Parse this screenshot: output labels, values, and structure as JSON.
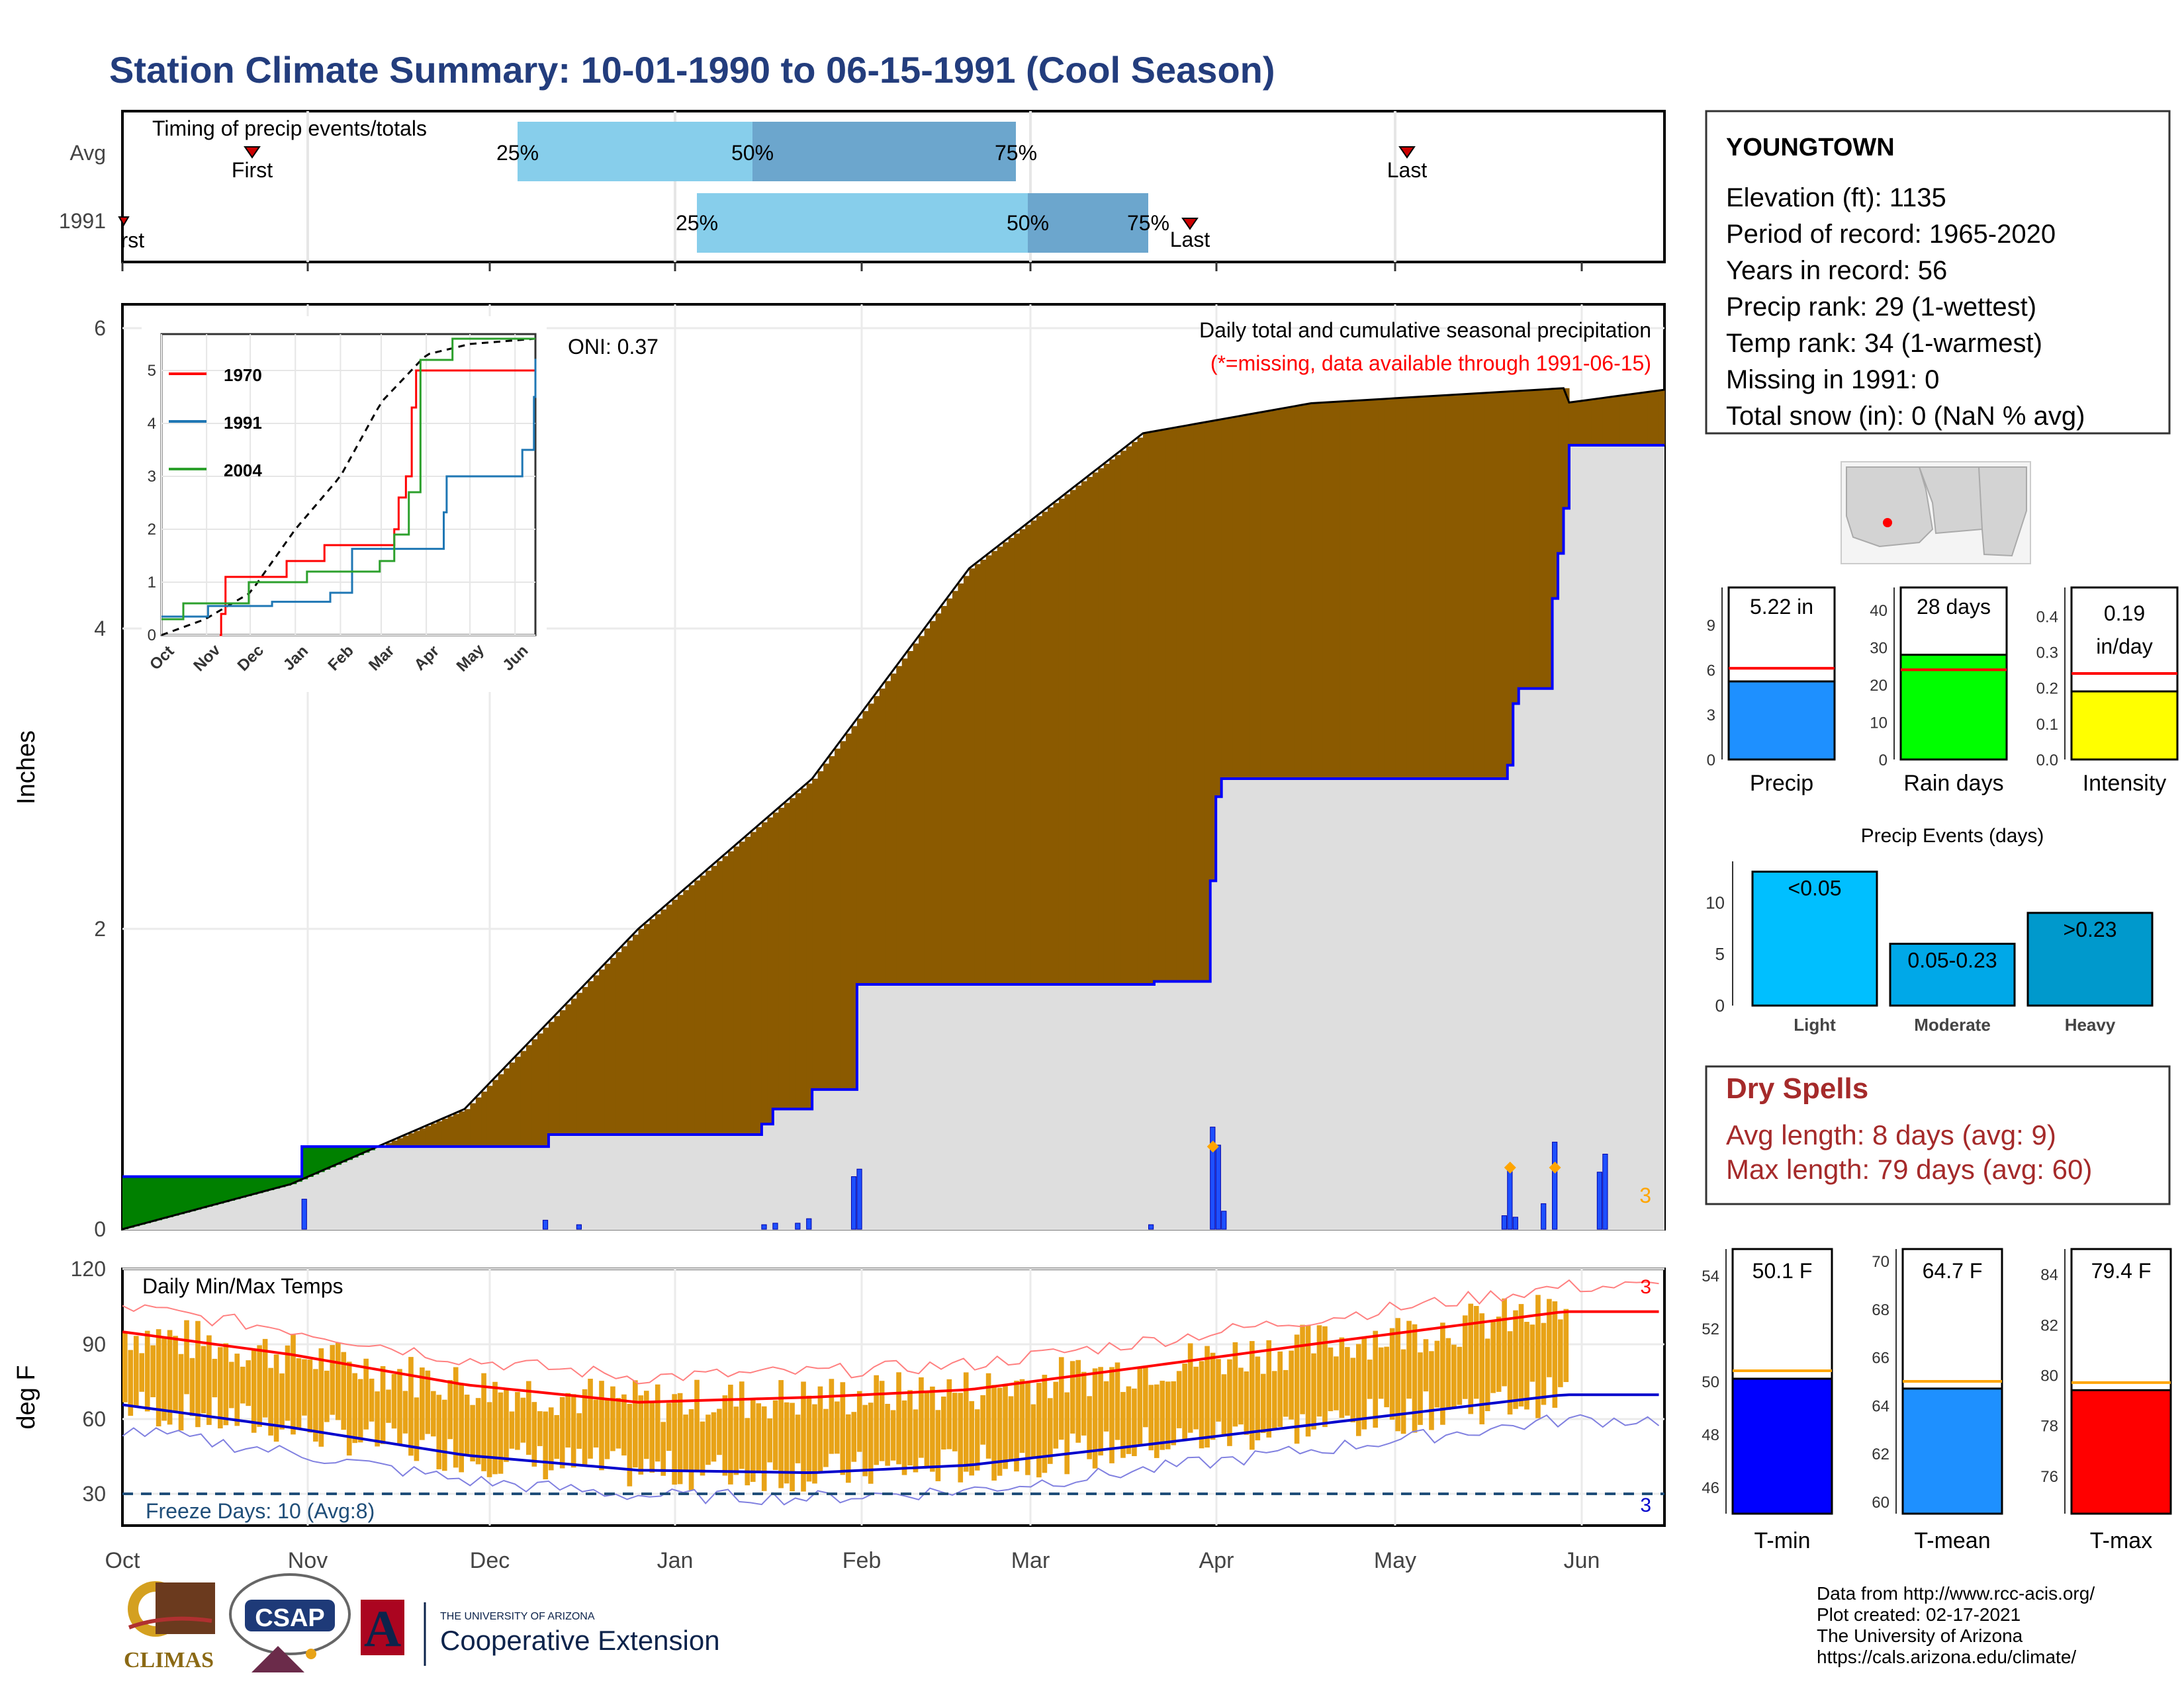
{
  "title": "Station Climate Summary: 10-01-1990 to 06-15-1991 (Cool Season)",
  "station": {
    "name": "YOUNGTOWN",
    "lines": [
      "Elevation (ft): 1135",
      "Period of record: 1965-2020",
      "Years in record: 56",
      "Precip rank: 29 (1-wettest)",
      "Temp rank: 34 (1-warmest)",
      "Missing in 1991: 0",
      "Total snow (in): 0 (NaN % avg)"
    ]
  },
  "timing": {
    "title": "Timing of precip events/totals",
    "rows": [
      "Avg",
      "1991"
    ],
    "avg": {
      "first": "First",
      "last": "Last",
      "p25": "25%",
      "p50": "50%",
      "p75": "75%"
    },
    "y1991": {
      "first": "First",
      "last": "Last",
      "p25": "25%",
      "p50": "50%",
      "p75": "75%"
    }
  },
  "precip_panel": {
    "ylabel": "Inches",
    "yticks": [
      "0",
      "2",
      "4",
      "6"
    ],
    "oni": "ONI: 0.37",
    "heading": "Daily total and cumulative seasonal precipitation",
    "missing_note": "(*=missing, data available through 1991-06-15)",
    "corner_count": "3"
  },
  "inset": {
    "legend": [
      "1970",
      "1991",
      "2004"
    ],
    "yticks": [
      "0",
      "1",
      "2",
      "3",
      "4",
      "5"
    ],
    "xticks": [
      "Oct",
      "Nov",
      "Dec",
      "Jan",
      "Feb",
      "Mar",
      "Apr",
      "May",
      "Jun"
    ]
  },
  "temp_panel": {
    "ylabel": "deg F",
    "title": "Daily Min/Max Temps",
    "freeze": "Freeze Days: 10 (Avg:8)",
    "yticks": [
      "30",
      "60",
      "90",
      "120"
    ],
    "xticks": [
      "Oct",
      "Nov",
      "Dec",
      "Jan",
      "Feb",
      "Mar",
      "Apr",
      "May",
      "Jun"
    ],
    "count_max": "3",
    "count_min": "3"
  },
  "mini_bars": [
    {
      "label": "Precip",
      "value_text": "5.22 in",
      "yticks": [
        "0",
        "3",
        "6",
        "9"
      ]
    },
    {
      "label": "Rain days",
      "value_text": "28 days",
      "yticks": [
        "0",
        "10",
        "20",
        "30",
        "40"
      ]
    },
    {
      "label": "Intensity",
      "value_text": "0.19 in/day",
      "value_line1": "0.19",
      "value_line2": "in/day",
      "yticks": [
        "0.0",
        "0.1",
        "0.2",
        "0.3",
        "0.4"
      ]
    }
  ],
  "events": {
    "title": "Precip Events (days)",
    "yticks": [
      "0",
      "5",
      "10"
    ],
    "bars": [
      {
        "category": "Light",
        "label": "<0.05"
      },
      {
        "category": "Moderate",
        "label": "0.05-0.23"
      },
      {
        "category": "Heavy",
        "label": ">0.23"
      }
    ]
  },
  "dry_spells": {
    "title": "Dry Spells",
    "avg": "Avg length: 8 days (avg: 9)",
    "max": "Max length: 79 days (avg: 60)"
  },
  "temp_bars": [
    {
      "label": "T-min",
      "value_text": "50.1 F",
      "yticks": [
        "46",
        "48",
        "50",
        "52",
        "54"
      ]
    },
    {
      "label": "T-mean",
      "value_text": "64.7 F",
      "yticks": [
        "60",
        "62",
        "64",
        "66",
        "68",
        "70"
      ]
    },
    {
      "label": "T-max",
      "value_text": "79.4 F",
      "yticks": [
        "76",
        "78",
        "80",
        "82",
        "84"
      ]
    }
  ],
  "footer": {
    "lines": [
      "Data from http://www.rcc-acis.org/",
      "Plot created: 02-17-2021",
      "The University of Arizona",
      "https://cals.arizona.edu/climate/"
    ],
    "logo_climas": "CLIMAS",
    "logo_csap": "CSAP",
    "logo_ua_small": "THE UNIVERSITY OF ARIZONA",
    "logo_ua": "Cooperative Extension"
  },
  "colors": {
    "title": "#233d7d",
    "brown": "#8b5a00",
    "green": "#008000",
    "blue": "#0000ff",
    "red": "#ff0000",
    "gold": "#e8a317",
    "precipBar": "#1e90ff",
    "raindayBar": "#00ff00",
    "intensityBar": "#ffff00",
    "dry": "#a52a2a"
  },
  "chart_data": [
    {
      "type": "area",
      "title": "Daily total and cumulative seasonal precipitation",
      "ylabel": "Inches",
      "ylim": [
        0,
        6.1
      ],
      "x_months": [
        "Oct",
        "Nov",
        "Dec",
        "Jan",
        "Feb",
        "Mar",
        "Apr",
        "May",
        "Jun"
      ],
      "series": [
        {
          "name": "Avg",
          "cumulative": [
            [
              0,
              0
            ],
            [
              30,
              0.3
            ],
            [
              61,
              0.8
            ],
            [
              92,
              2.0
            ],
            [
              123,
              3.0
            ],
            [
              151,
              4.4
            ],
            [
              182,
              5.3
            ],
            [
              212,
              5.5
            ],
            [
              257,
              5.6
            ]
          ]
        },
        {
          "name": "1991",
          "cumulative": [
            [
              0,
              0.35
            ],
            [
              31,
              0.35
            ],
            [
              32,
              0.55
            ],
            [
              75,
              0.55
            ],
            [
              76,
              0.63
            ],
            [
              114,
              0.7
            ],
            [
              116,
              0.8
            ],
            [
              123,
              0.93
            ],
            [
              130,
              0.93
            ],
            [
              131,
              1.63
            ],
            [
              183,
              1.63
            ],
            [
              184,
              1.65
            ],
            [
              193,
              1.65
            ],
            [
              194,
              2.32
            ],
            [
              195,
              2.88
            ],
            [
              196,
              3.0
            ],
            [
              246,
              3.0
            ],
            [
              247,
              3.09
            ],
            [
              248,
              3.5
            ],
            [
              249,
              3.6
            ],
            [
              254,
              3.6
            ],
            [
              255,
              4.2
            ],
            [
              256,
              4.5
            ],
            [
              257,
              4.8
            ],
            [
              263,
              4.8
            ],
            [
              264,
              5.15
            ],
            [
              275,
              5.22
            ],
            [
              257,
              5.22
            ]
          ]
        }
      ],
      "daily_events": [
        [
          32,
          0.2
        ],
        [
          75,
          0.06
        ],
        [
          81,
          0.03
        ],
        [
          114,
          0.03
        ],
        [
          116,
          0.04
        ],
        [
          120,
          0.04
        ],
        [
          122,
          0.07
        ],
        [
          130,
          0.35
        ],
        [
          131,
          0.4
        ],
        [
          183,
          0.03
        ],
        [
          194,
          0.68
        ],
        [
          195,
          0.56
        ],
        [
          196,
          0.12
        ],
        [
          246,
          0.09
        ],
        [
          247,
          0.41
        ],
        [
          248,
          0.08
        ],
        [
          253,
          0.17
        ],
        [
          255,
          0.58
        ],
        [
          263,
          0.38
        ],
        [
          264,
          0.5
        ]
      ]
    },
    {
      "type": "line",
      "title": "",
      "ylim": [
        0,
        5.5
      ],
      "series": [
        {
          "name": "1970",
          "values": [
            [
              40,
              0.0
            ],
            [
              41,
              0.4
            ],
            [
              44,
              1.1
            ],
            [
              75,
              1.1
            ],
            [
              86,
              1.4
            ],
            [
              112,
              1.7
            ],
            [
              140,
              1.7
            ],
            [
              160,
              2.0
            ],
            [
              163,
              2.6
            ],
            [
              168,
              3.0
            ],
            [
              172,
              4.3
            ],
            [
              175,
              5.0
            ],
            [
              190,
              5.0
            ],
            [
              205,
              5.0
            ],
            [
              260,
              5.0
            ]
          ]
        },
        {
          "name": "1991",
          "values": [
            [
              0,
              0.35
            ],
            [
              32,
              0.55
            ],
            [
              76,
              0.63
            ],
            [
              116,
              0.8
            ],
            [
              131,
              1.63
            ],
            [
              194,
              2.32
            ],
            [
              196,
              3.0
            ],
            [
              248,
              3.5
            ],
            [
              256,
              4.5
            ],
            [
              264,
              5.15
            ],
            [
              275,
              5.22
            ]
          ]
        },
        {
          "name": "2004",
          "values": [
            [
              0,
              0.3
            ],
            [
              15,
              0.6
            ],
            [
              60,
              1.0
            ],
            [
              100,
              1.2
            ],
            [
              150,
              1.4
            ],
            [
              160,
              1.9
            ],
            [
              170,
              2.7
            ],
            [
              178,
              5.2
            ],
            [
              200,
              5.6
            ],
            [
              275,
              5.6
            ]
          ]
        }
      ]
    },
    {
      "type": "bar",
      "categories": [
        "Light",
        "Moderate",
        "Heavy"
      ],
      "values": [
        13,
        6,
        9
      ],
      "title": "Precip Events (days)",
      "ylim": [
        0,
        14
      ]
    },
    {
      "type": "bar",
      "categories": [
        "Precip",
        "Rain days",
        "Intensity"
      ],
      "values": [
        5.22,
        28,
        0.19
      ],
      "avg_lines": [
        6.1,
        24,
        0.24
      ],
      "ylims": [
        [
          0,
          11.5
        ],
        [
          0,
          46
        ],
        [
          0,
          0.48
        ]
      ]
    },
    {
      "type": "bar",
      "categories": [
        "T-min",
        "T-mean",
        "T-max"
      ],
      "values": [
        50.1,
        64.7,
        79.4
      ],
      "avg_lines": [
        50.4,
        65.0,
        79.7
      ],
      "ylims": [
        [
          45,
          55
        ],
        [
          59.5,
          70.5
        ],
        [
          74.5,
          85
        ]
      ]
    },
    {
      "type": "line",
      "title": "Daily Min/Max Temps",
      "ylabel": "deg F",
      "ylim": [
        18,
        120
      ],
      "series": [
        {
          "name": "avg max",
          "values": [
            [
              0,
              95
            ],
            [
              30,
              86
            ],
            [
              61,
              74
            ],
            [
              92,
              67
            ],
            [
              123,
              69
            ],
            [
              151,
              72
            ],
            [
              182,
              81
            ],
            [
              212,
              90
            ],
            [
              257,
              103
            ]
          ]
        },
        {
          "name": "avg min",
          "values": [
            [
              0,
              66
            ],
            [
              30,
              57
            ],
            [
              61,
              46
            ],
            [
              92,
              40
            ],
            [
              123,
              39
            ],
            [
              151,
              42
            ],
            [
              182,
              50
            ],
            [
              212,
              58
            ],
            [
              257,
              70
            ]
          ]
        }
      ]
    }
  ]
}
